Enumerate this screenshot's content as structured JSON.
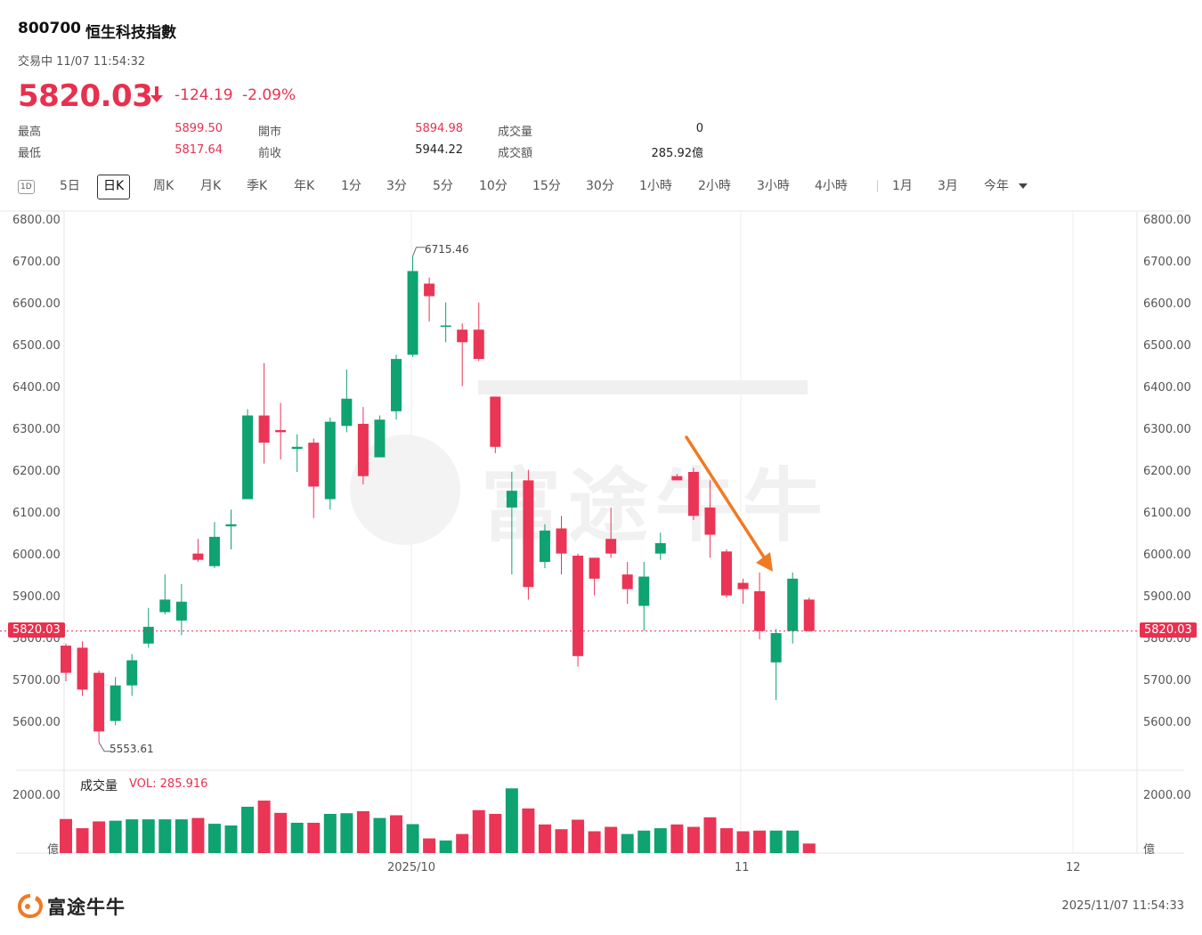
{
  "header": {
    "code": "800700",
    "name": "恒生科技指數",
    "status": "交易中 11/07 11:54:32",
    "price": "5820.03",
    "arrow_icon": "down-arrow-icon",
    "change": "-124.19",
    "change_pct": "-2.09%"
  },
  "stats": {
    "high_label": "最高",
    "high": "5899.50",
    "low_label": "最低",
    "low": "5817.64",
    "open_label": "開市",
    "open": "5894.98",
    "prev_label": "前收",
    "prev": "5944.22",
    "vol_label": "成交量",
    "vol": "0",
    "turnover_label": "成交額",
    "turnover": "285.92億"
  },
  "tabs": [
    "1D",
    "5日",
    "日K",
    "周K",
    "月K",
    "季K",
    "年K",
    "1分",
    "3分",
    "5分",
    "10分",
    "15分",
    "30分",
    "1小時",
    "2小時",
    "3小時",
    "4小時",
    "1月",
    "3月",
    "今年"
  ],
  "active_tab": "日K",
  "colors": {
    "up": "#0ea371",
    "down": "#ea3556",
    "accent_arrow": "#f07a23"
  },
  "axis": {
    "price_ticks": [
      "6800.00",
      "6700.00",
      "6600.00",
      "6500.00",
      "6400.00",
      "6300.00",
      "6200.00",
      "6100.00",
      "6000.00",
      "5900.00",
      "5800.00",
      "5700.00",
      "5600.00"
    ],
    "vol_ticks": [
      "2000.00",
      "億"
    ],
    "date_labels": [
      "2025/10",
      "11",
      "12"
    ]
  },
  "current_line_label": "5820.03",
  "callouts": {
    "high": "6715.46",
    "low": "5553.61"
  },
  "volume": {
    "title": "成交量",
    "value_label": "VOL: 285.916"
  },
  "chart_data": {
    "type": "candlestick",
    "ylim": [
      5500,
      6800
    ],
    "candles": [
      {
        "o": 5785,
        "c": 5720,
        "h": 5790,
        "l": 5700
      },
      {
        "o": 5780,
        "c": 5680,
        "h": 5795,
        "l": 5665
      },
      {
        "o": 5720,
        "c": 5580,
        "h": 5725,
        "l": 5553.61
      },
      {
        "o": 5605,
        "c": 5690,
        "h": 5710,
        "l": 5595
      },
      {
        "o": 5690,
        "c": 5750,
        "h": 5765,
        "l": 5665
      },
      {
        "o": 5790,
        "c": 5830,
        "h": 5875,
        "l": 5780
      },
      {
        "o": 5865,
        "c": 5895,
        "h": 5955,
        "l": 5860
      },
      {
        "o": 5845,
        "c": 5890,
        "h": 5932,
        "l": 5810
      },
      {
        "o": 6005,
        "c": 5990,
        "h": 6040,
        "l": 5985
      },
      {
        "o": 5975,
        "c": 6045,
        "h": 6080,
        "l": 5970
      },
      {
        "o": 6070,
        "c": 6075,
        "h": 6110,
        "l": 6015
      },
      {
        "o": 6135,
        "c": 6335,
        "h": 6350,
        "l": 6135
      },
      {
        "o": 6335,
        "c": 6270,
        "h": 6460,
        "l": 6220
      },
      {
        "o": 6300,
        "c": 6295,
        "h": 6365,
        "l": 6230
      },
      {
        "o": 6255,
        "c": 6260,
        "h": 6290,
        "l": 6200
      },
      {
        "o": 6270,
        "c": 6165,
        "h": 6280,
        "l": 6090
      },
      {
        "o": 6135,
        "c": 6320,
        "h": 6330,
        "l": 6110
      },
      {
        "o": 6310,
        "c": 6375,
        "h": 6445,
        "l": 6295
      },
      {
        "o": 6315,
        "c": 6190,
        "h": 6355,
        "l": 6170
      },
      {
        "o": 6235,
        "c": 6325,
        "h": 6335,
        "l": 6235
      },
      {
        "o": 6345,
        "c": 6470,
        "h": 6480,
        "l": 6325
      },
      {
        "o": 6480,
        "c": 6680,
        "h": 6715.46,
        "l": 6475
      },
      {
        "o": 6650,
        "c": 6620,
        "h": 6665,
        "l": 6560
      },
      {
        "o": 6550,
        "c": 6550,
        "h": 6605,
        "l": 6510
      },
      {
        "o": 6540,
        "c": 6510,
        "h": 6555,
        "l": 6405
      },
      {
        "o": 6540,
        "c": 6470,
        "h": 6605,
        "l": 6465
      },
      {
        "o": 6380,
        "c": 6260,
        "h": 6380,
        "l": 6245
      },
      {
        "o": 6115,
        "c": 6155,
        "h": 6200,
        "l": 5955
      },
      {
        "o": 6180,
        "c": 5925,
        "h": 6205,
        "l": 5895
      },
      {
        "o": 5985,
        "c": 6060,
        "h": 6075,
        "l": 5970
      },
      {
        "o": 6065,
        "c": 6005,
        "h": 6095,
        "l": 5955
      },
      {
        "o": 6000,
        "c": 5760,
        "h": 6005,
        "l": 5735
      },
      {
        "o": 5995,
        "c": 5945,
        "h": 5995,
        "l": 5905
      },
      {
        "o": 6040,
        "c": 6005,
        "h": 6115,
        "l": 5995
      },
      {
        "o": 5955,
        "c": 5920,
        "h": 5985,
        "l": 5885
      },
      {
        "o": 5880,
        "c": 5950,
        "h": 5985,
        "l": 5820
      },
      {
        "o": 6005,
        "c": 6030,
        "h": 6055,
        "l": 5990
      },
      {
        "o": 6190,
        "c": 6180,
        "h": 6195,
        "l": 6180
      },
      {
        "o": 6200,
        "c": 6095,
        "h": 6210,
        "l": 6085
      },
      {
        "o": 6115,
        "c": 6050,
        "h": 6180,
        "l": 5995
      },
      {
        "o": 6010,
        "c": 5905,
        "h": 6015,
        "l": 5900
      },
      {
        "o": 5935,
        "c": 5920,
        "h": 5945,
        "l": 5885
      },
      {
        "o": 5915,
        "c": 5820,
        "h": 5960,
        "l": 5800
      },
      {
        "o": 5745,
        "c": 5815,
        "h": 5825,
        "l": 5655
      },
      {
        "o": 5820,
        "c": 5945,
        "h": 5960,
        "l": 5790
      },
      {
        "o": 5895,
        "c": 5820,
        "h": 5900,
        "l": 5818
      }
    ],
    "volumes": [
      {
        "v": 1000,
        "up": false
      },
      {
        "v": 730,
        "up": false
      },
      {
        "v": 930,
        "up": false
      },
      {
        "v": 950,
        "up": true
      },
      {
        "v": 990,
        "up": true
      },
      {
        "v": 990,
        "up": true
      },
      {
        "v": 990,
        "up": true
      },
      {
        "v": 990,
        "up": true
      },
      {
        "v": 1030,
        "up": false
      },
      {
        "v": 860,
        "up": true
      },
      {
        "v": 810,
        "up": true
      },
      {
        "v": 1360,
        "up": true
      },
      {
        "v": 1540,
        "up": false
      },
      {
        "v": 1180,
        "up": false
      },
      {
        "v": 890,
        "up": true
      },
      {
        "v": 890,
        "up": false
      },
      {
        "v": 1150,
        "up": true
      },
      {
        "v": 1170,
        "up": true
      },
      {
        "v": 1230,
        "up": false
      },
      {
        "v": 1030,
        "up": true
      },
      {
        "v": 1110,
        "up": false
      },
      {
        "v": 850,
        "up": true
      },
      {
        "v": 430,
        "up": false
      },
      {
        "v": 370,
        "up": true
      },
      {
        "v": 560,
        "up": false
      },
      {
        "v": 1260,
        "up": false
      },
      {
        "v": 1150,
        "up": false
      },
      {
        "v": 1900,
        "up": true
      },
      {
        "v": 1310,
        "up": false
      },
      {
        "v": 840,
        "up": false
      },
      {
        "v": 700,
        "up": false
      },
      {
        "v": 980,
        "up": false
      },
      {
        "v": 640,
        "up": false
      },
      {
        "v": 770,
        "up": false
      },
      {
        "v": 560,
        "up": true
      },
      {
        "v": 660,
        "up": true
      },
      {
        "v": 730,
        "up": true
      },
      {
        "v": 840,
        "up": false
      },
      {
        "v": 770,
        "up": false
      },
      {
        "v": 1050,
        "up": false
      },
      {
        "v": 730,
        "up": false
      },
      {
        "v": 640,
        "up": false
      },
      {
        "v": 660,
        "up": false
      },
      {
        "v": 660,
        "up": true
      },
      {
        "v": 660,
        "up": true
      },
      {
        "v": 280,
        "up": false
      }
    ],
    "vol_ylim": [
      0,
      2300
    ]
  },
  "footer": {
    "logo": "富途牛牛",
    "timestamp": "2025/11/07 11:54:33"
  }
}
